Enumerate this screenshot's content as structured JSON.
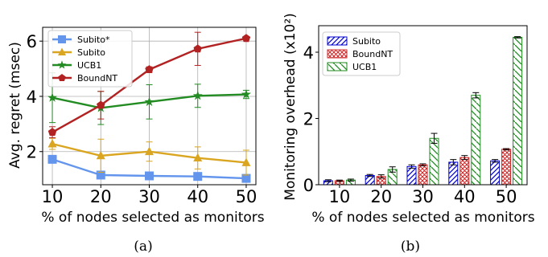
{
  "chart_data": [
    {
      "type": "line",
      "caption": "(a)",
      "xlabel": "% of nodes selected as monitors",
      "ylabel": "Avg. regret (msec)",
      "x": [
        10,
        20,
        30,
        40,
        50
      ],
      "xlim": [
        8,
        52
      ],
      "ylim": [
        0.8,
        6.5
      ],
      "yticks": [
        2,
        4,
        6
      ],
      "grid": true,
      "legend_position": "top-left",
      "series": [
        {
          "name": "Subito*",
          "color": "#6495ED",
          "marker": "square",
          "values": [
            1.72,
            1.15,
            1.12,
            1.1,
            1.03
          ],
          "err": [
            0.08,
            0.05,
            0.05,
            0.05,
            0.04
          ]
        },
        {
          "name": "Subito",
          "color": "#DAA520",
          "marker": "triangle",
          "values": [
            2.28,
            1.85,
            2.0,
            1.77,
            1.6
          ],
          "err": [
            0.2,
            0.6,
            0.35,
            0.4,
            0.45
          ]
        },
        {
          "name": "UCB1",
          "color": "#228B22",
          "marker": "star",
          "values": [
            3.95,
            3.58,
            3.8,
            4.02,
            4.07
          ],
          "err": [
            0.9,
            0.6,
            0.62,
            0.42,
            0.15
          ]
        },
        {
          "name": "BoundNT",
          "color": "#B22222",
          "marker": "pentagon",
          "values": [
            2.7,
            3.68,
            4.97,
            5.72,
            6.1
          ],
          "err": [
            0.2,
            0.5,
            0.1,
            0.6,
            0.05
          ]
        }
      ]
    },
    {
      "type": "bar",
      "caption": "(b)",
      "xlabel": "% of nodes selected as monitors",
      "ylabel": "Monitoring overhead (x10²)",
      "categories": [
        "10",
        "20",
        "30",
        "40",
        "50"
      ],
      "ylim": [
        0,
        4.8
      ],
      "yticks": [
        0,
        2,
        4
      ],
      "grid": false,
      "legend_position": "top-left",
      "series": [
        {
          "name": "Subito",
          "color": "#0000CD",
          "hatch": "diagonal",
          "values": [
            0.12,
            0.28,
            0.55,
            0.68,
            0.72
          ],
          "err": [
            0.03,
            0.03,
            0.05,
            0.08,
            0.04
          ]
        },
        {
          "name": "BoundNT",
          "color": "#CD2626",
          "hatch": "crosshatch",
          "values": [
            0.12,
            0.25,
            0.6,
            0.82,
            1.07
          ],
          "err": [
            0.02,
            0.05,
            0.03,
            0.06,
            0.02
          ]
        },
        {
          "name": "UCB1",
          "color": "#228B22",
          "hatch": "backdiagonal",
          "values": [
            0.14,
            0.46,
            1.4,
            2.7,
            4.45
          ],
          "err": [
            0.03,
            0.08,
            0.15,
            0.08,
            0.02
          ]
        }
      ]
    }
  ]
}
